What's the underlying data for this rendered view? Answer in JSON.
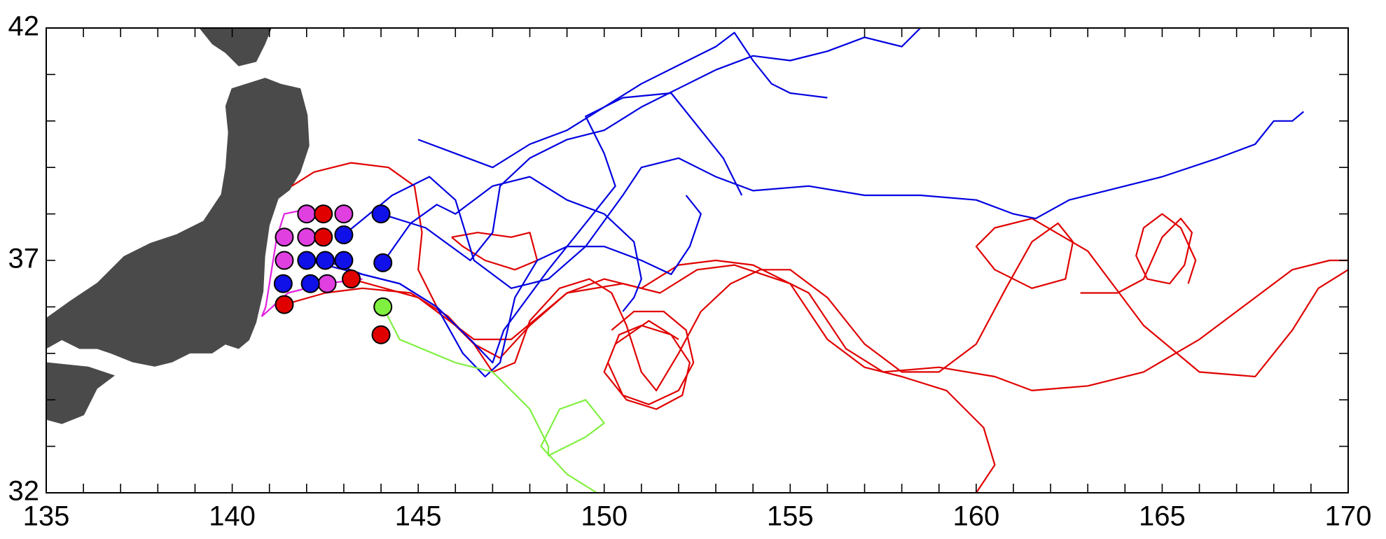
{
  "chart_data": {
    "type": "line",
    "xlim": [
      135,
      170
    ],
    "ylim": [
      32,
      42
    ],
    "xticks": [
      135,
      140,
      145,
      150,
      155,
      160,
      165,
      170
    ],
    "yticks": [
      32,
      37,
      42
    ],
    "xminorticks": [
      136,
      137,
      138,
      139,
      141,
      142,
      143,
      144,
      146,
      147,
      148,
      149,
      151,
      152,
      153,
      154,
      156,
      157,
      158,
      159,
      161,
      162,
      163,
      164,
      166,
      167,
      168,
      169
    ],
    "yminorticks": [
      33,
      34,
      35,
      36,
      38,
      39,
      40,
      41
    ],
    "series": [
      {
        "color": "#e00000",
        "x": [
          141.4,
          142.5,
          143.5,
          144.8,
          145.8,
          146.5,
          147,
          147.6,
          148,
          148.8,
          149.6,
          150.2,
          150.6,
          151,
          151.4,
          152,
          152.6,
          153.4,
          154.2,
          155,
          156,
          157,
          158,
          159,
          160,
          160.8,
          161.5,
          162.2,
          162.6,
          162.4,
          161.5,
          160.5,
          160,
          160.5,
          161.5,
          163,
          164.5,
          166,
          167.5,
          168.5,
          169.2,
          170
        ],
        "values": [
          36.05,
          36.3,
          36.4,
          36.3,
          35.8,
          35.2,
          34.6,
          34.8,
          35.7,
          36.4,
          36.6,
          36.3,
          35.6,
          34.6,
          34.2,
          35,
          35.9,
          36.5,
          36.8,
          36.8,
          36.2,
          35.2,
          34.6,
          34.6,
          35.2,
          36.4,
          37.4,
          37.8,
          37.4,
          36.6,
          36.4,
          36.8,
          37.3,
          37.7,
          37.9,
          37.2,
          35.6,
          34.6,
          34.5,
          35.5,
          36.4,
          36.8
        ]
      },
      {
        "color": "#e00000",
        "x": [
          141.6,
          142.2,
          143.2,
          144.2,
          144.9,
          145.1,
          145,
          145.5,
          146.5,
          147.2,
          148,
          149,
          150,
          151,
          152,
          153,
          154,
          155.5,
          156.5,
          157.5,
          159,
          160.5,
          161.5,
          163,
          164.5,
          166,
          167.5,
          168.5,
          169.5,
          170
        ],
        "values": [
          38.6,
          38.9,
          39.1,
          39.0,
          38.6,
          37.6,
          36.8,
          36.0,
          35.2,
          34.9,
          35.6,
          36.3,
          36.6,
          36.4,
          36.9,
          37,
          36.9,
          36.3,
          35.1,
          34.6,
          34.7,
          34.5,
          34.2,
          34.3,
          34.6,
          35.3,
          36.2,
          36.8,
          37,
          37.0
        ]
      },
      {
        "color": "#e00000",
        "x": [
          143.2,
          145,
          146.5,
          147.5,
          149,
          150.5,
          151.5,
          152.5,
          153.5,
          155,
          156,
          157,
          158,
          159.2,
          160.2,
          160.5,
          160
        ],
        "values": [
          36.6,
          36.2,
          35.3,
          35.3,
          36.3,
          36.5,
          36.3,
          36.8,
          36.9,
          36.5,
          35.3,
          34.7,
          34.5,
          34.2,
          33.4,
          32.6,
          32
        ]
      },
      {
        "color": "#e00000",
        "x": [
          150.2,
          150.8,
          151.6,
          152.2,
          152.4,
          152,
          151.2,
          150.5,
          150.1,
          150.4,
          151,
          151.8,
          152.3,
          152.1,
          151.4,
          150.6,
          150,
          150.3,
          151.2,
          152
        ],
        "values": [
          35.5,
          35.9,
          35.9,
          35.5,
          34.8,
          34.2,
          33.9,
          34.1,
          34.8,
          35.4,
          35.6,
          35.4,
          34.8,
          34.1,
          33.8,
          34,
          34.6,
          35.2,
          35.7,
          35.3
        ]
      },
      {
        "color": "#e00000",
        "x": [
          162.8,
          163.8,
          164.5,
          165,
          165.5,
          165.8,
          165.6,
          165.2,
          164.6,
          164.3,
          164.5,
          165,
          165.5,
          165.9,
          165.7
        ],
        "values": [
          36.3,
          36.3,
          36.6,
          37.5,
          37.9,
          37.6,
          36.9,
          36.5,
          36.6,
          37.1,
          37.7,
          38.0,
          37.7,
          37.0,
          36.5
        ]
      },
      {
        "color": "#e00000",
        "x": [
          145.9,
          146.6,
          147.5,
          148,
          148.2,
          147.6,
          146.8,
          146.2,
          145.9
        ],
        "values": [
          37.5,
          37.6,
          37.5,
          37.6,
          37.0,
          36.8,
          37.0,
          37.3,
          37.5
        ]
      },
      {
        "color": "#0000e0",
        "x": [
          142.5,
          143.5,
          144.5,
          145.5,
          146.2,
          146.8,
          147.2,
          147.6,
          148.2,
          149,
          150,
          151,
          151.8,
          152.3,
          152.6,
          152.2
        ],
        "values": [
          37.0,
          36.7,
          36.5,
          36.0,
          35.0,
          34.5,
          34.8,
          36.2,
          37.0,
          37.3,
          37.3,
          37.0,
          36.7,
          37.3,
          38,
          38.4
        ]
      },
      {
        "color": "#0000e0",
        "x": [
          144,
          145.2,
          146.4,
          147,
          147.2,
          148,
          149,
          150,
          151,
          152,
          153,
          154,
          155,
          156,
          157,
          158,
          158.5
        ],
        "values": [
          38,
          37.7,
          37.0,
          37.6,
          38.6,
          39.2,
          39.6,
          39.8,
          40.3,
          40.7,
          41.1,
          41.4,
          41.3,
          41.5,
          41.8,
          41.6,
          42
        ]
      },
      {
        "color": "#0000e0",
        "x": [
          143,
          144.3,
          145.3,
          146,
          146.5,
          147.5,
          148.5,
          149.5,
          150.5,
          151,
          152,
          153,
          154,
          155.5,
          157,
          158.5,
          160,
          161,
          161.6,
          162.5,
          163.5,
          165,
          166.5,
          167.5,
          168,
          168.5,
          168.8
        ],
        "values": [
          37.55,
          38.4,
          38.8,
          38.3,
          37.0,
          36.4,
          36.6,
          37.3,
          38.4,
          39.0,
          39.2,
          38.8,
          38.5,
          38.6,
          38.4,
          38.4,
          38.3,
          38.0,
          37.9,
          38.3,
          38.5,
          38.8,
          39.2,
          39.5,
          40.0,
          40.0,
          40.2
        ]
      },
      {
        "color": "#0000e0",
        "x": [
          145,
          146,
          147,
          148,
          149,
          150,
          151,
          152,
          153,
          153.5,
          154,
          154.5,
          155,
          156
        ],
        "values": [
          39.6,
          39.3,
          39.0,
          39.5,
          39.8,
          40.3,
          40.8,
          41.2,
          41.6,
          41.9,
          41.3,
          40.8,
          40.6,
          40.5
        ]
      },
      {
        "color": "#0000e0",
        "x": [
          142,
          143.5,
          144.5,
          145.5,
          146.4,
          147,
          147.3,
          148.5,
          149.5,
          150.3,
          150,
          149.5,
          150.5,
          151.8,
          153.2,
          153.7
        ],
        "values": [
          37,
          36.7,
          36.5,
          36.0,
          35.3,
          34.8,
          35.5,
          36.8,
          37.8,
          38.6,
          39.3,
          40.1,
          40.5,
          40.6,
          39.2,
          38.4
        ]
      },
      {
        "color": "#0000e0",
        "x": [
          144.05,
          144.8,
          145.5,
          146,
          147,
          148,
          149,
          150,
          150.8,
          151,
          150.8,
          150.5
        ],
        "values": [
          36.95,
          37.8,
          38.2,
          38.0,
          38.6,
          38.8,
          38.3,
          38.0,
          37.4,
          36.6,
          36.2,
          35.9
        ]
      },
      {
        "color": "#e020e0",
        "x": [
          142,
          141.4,
          141.2,
          141.1,
          141.0,
          140.9,
          140.8,
          141.5,
          142.5,
          143.5
        ],
        "values": [
          38.1,
          38.0,
          37.5,
          37.0,
          36.5,
          36.0,
          35.8,
          36.3,
          36.5,
          36.6
        ]
      },
      {
        "color": "#80f040",
        "x": [
          144.05,
          144.5,
          146,
          147,
          148,
          148.5,
          148.5,
          149.5,
          150,
          149.5,
          148.8,
          148.3,
          149,
          149.8
        ],
        "values": [
          36.0,
          35.3,
          34.8,
          34.6,
          33.8,
          33,
          32.8,
          33.2,
          33.5,
          34,
          33.8,
          33,
          32.4,
          32
        ]
      }
    ],
    "markers": {
      "x": [
        142.0,
        143.0,
        141.4,
        142.0,
        141.4,
        142.55,
        142.45,
        142.45,
        141.4,
        144.0,
        143.2,
        144.0,
        143.0,
        142.0,
        142.5,
        143.0,
        144.05,
        141.37,
        142.1,
        144.05
      ],
      "y": [
        38.0,
        38.0,
        37.5,
        37.5,
        37.0,
        36.5,
        38.0,
        37.5,
        36.05,
        35.4,
        36.6,
        38.0,
        37.55,
        37.0,
        37.0,
        37.0,
        36.95,
        36.5,
        36.5,
        36.0
      ],
      "colors": [
        "#e040e0",
        "#e040e0",
        "#e040e0",
        "#e040e0",
        "#e040e0",
        "#e040e0",
        "#e00000",
        "#e00000",
        "#e00000",
        "#e00000",
        "#e00000",
        "#1010e8",
        "#1010e8",
        "#1010e8",
        "#1010e8",
        "#1010e8",
        "#1010e8",
        "#1010e8",
        "#1010e8",
        "#80f040"
      ]
    }
  }
}
